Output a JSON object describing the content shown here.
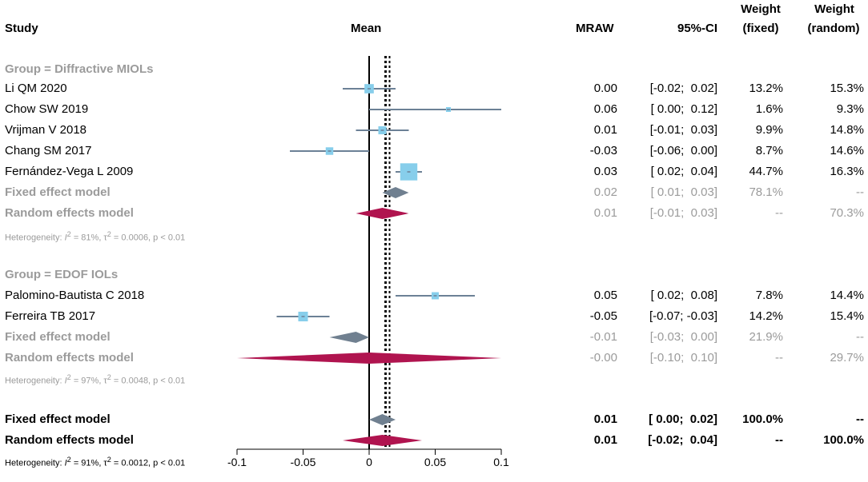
{
  "headers": {
    "study": "Study",
    "mean": "Mean",
    "mraw": "MRAW",
    "ci": "95%-CI",
    "weight_fixed": [
      "Weight",
      "(fixed)"
    ],
    "weight_random": [
      "Weight",
      "(random)"
    ]
  },
  "groups": [
    {
      "title": "Group = Diffractive MIOLs",
      "heterogeneity": {
        "prefix": "Heterogeneity: ",
        "i": "I",
        "sup": "2",
        "rest": " = 81%, τ",
        "sup2": "2",
        "rest2": " = 0.0006, p < 0.01"
      }
    },
    {
      "title": "Group = EDOF IOLs",
      "heterogeneity": {
        "prefix": "Heterogeneity: ",
        "i": "I",
        "sup": "2",
        "rest": " = 97%, τ",
        "sup2": "2",
        "rest2": " = 0.0048, p < 0.01"
      }
    }
  ],
  "overall_heterogeneity": {
    "prefix": "Heterogeneity: ",
    "i": "I",
    "sup": "2",
    "rest": " = 91%, τ",
    "sup2": "2",
    "rest2": " = 0.0012, p < 0.01"
  },
  "colors": {
    "study_square": "#87ceeb",
    "study_line": "#6c8196",
    "fixed_diamond": "#708090",
    "random_diamond": "#b0144f",
    "grey_text": "#9b9b9b"
  },
  "chart_data": {
    "type": "forest",
    "xlabel": "",
    "xlim": [
      -0.1,
      0.1
    ],
    "ticks": [
      -0.1,
      -0.05,
      0,
      0.05,
      0.1
    ],
    "tick_labels": [
      "-0.1",
      "-0.05",
      "0",
      "0.05",
      "0.1"
    ],
    "fixed_overall_line": 0.01,
    "random_overall_line": 0.01,
    "rows": [
      {
        "kind": "study",
        "label": "Li QM  2020",
        "mean": 0.0,
        "lo": -0.02,
        "hi": 0.02,
        "mraw": "0.00",
        "ci": "[-0.02;  0.02]",
        "wf": "13.2%",
        "wr": "15.3%",
        "weight": 13.2
      },
      {
        "kind": "study",
        "label": "Chow SW 2019",
        "mean": 0.06,
        "lo": 0.0,
        "hi": 0.12,
        "mraw": "0.06",
        "ci": "[ 0.00;  0.12]",
        "wf": "1.6%",
        "wr": "9.3%",
        "weight": 1.6
      },
      {
        "kind": "study",
        "label": "Vrijman V 2018",
        "mean": 0.01,
        "lo": -0.01,
        "hi": 0.03,
        "mraw": "0.01",
        "ci": "[-0.01;  0.03]",
        "wf": "9.9%",
        "wr": "14.8%",
        "weight": 9.9
      },
      {
        "kind": "study",
        "label": "Chang SM 2017",
        "mean": -0.03,
        "lo": -0.06,
        "hi": 0.0,
        "mraw": "-0.03",
        "ci": "[-0.06;  0.00]",
        "wf": "8.7%",
        "wr": "14.6%",
        "weight": 8.7
      },
      {
        "kind": "study",
        "label": "Fernández-Vega L 2009",
        "mean": 0.03,
        "lo": 0.02,
        "hi": 0.04,
        "mraw": "0.03",
        "ci": "[ 0.02;  0.04]",
        "wf": "44.7%",
        "wr": "16.3%",
        "weight": 44.7
      },
      {
        "kind": "fixed",
        "label": "Fixed effect model",
        "mean": 0.02,
        "lo": 0.01,
        "hi": 0.03,
        "mraw": "0.02",
        "ci": "[ 0.01;  0.03]",
        "wf": "78.1%",
        "wr": "--"
      },
      {
        "kind": "random",
        "label": "Random effects model",
        "mean": 0.01,
        "lo": -0.01,
        "hi": 0.03,
        "mraw": "0.01",
        "ci": "[-0.01;  0.03]",
        "wf": "--",
        "wr": "70.3%"
      },
      {
        "kind": "study",
        "label": "Palomino-Bautista C 2018",
        "mean": 0.05,
        "lo": 0.02,
        "hi": 0.08,
        "mraw": "0.05",
        "ci": "[ 0.02;  0.08]",
        "wf": "7.8%",
        "wr": "14.4%",
        "weight": 7.8
      },
      {
        "kind": "study",
        "label": "Ferreira TB 2017",
        "mean": -0.05,
        "lo": -0.07,
        "hi": -0.03,
        "mraw": "-0.05",
        "ci": "[-0.07; -0.03]",
        "wf": "14.2%",
        "wr": "15.4%",
        "weight": 14.2
      },
      {
        "kind": "fixed",
        "label": "Fixed effect model",
        "mean": -0.01,
        "lo": -0.03,
        "hi": 0.0,
        "mraw": "-0.01",
        "ci": "[-0.03;  0.00]",
        "wf": "21.9%",
        "wr": "--"
      },
      {
        "kind": "random",
        "label": "Random effects model",
        "mean": -0.0,
        "lo": -0.1,
        "hi": 0.1,
        "mraw": "-0.00",
        "ci": "[-0.10;  0.10]",
        "wf": "--",
        "wr": "29.7%"
      },
      {
        "kind": "fixed_total",
        "label": "Fixed effect model",
        "mean": 0.01,
        "lo": 0.0,
        "hi": 0.02,
        "mraw": "0.01",
        "ci": "[ 0.00;  0.02]",
        "wf": "100.0%",
        "wr": "--"
      },
      {
        "kind": "random_total",
        "label": "Random effects model",
        "mean": 0.01,
        "lo": -0.02,
        "hi": 0.04,
        "mraw": "0.01",
        "ci": "[-0.02;  0.04]",
        "wf": "--",
        "wr": "100.0%"
      }
    ]
  }
}
